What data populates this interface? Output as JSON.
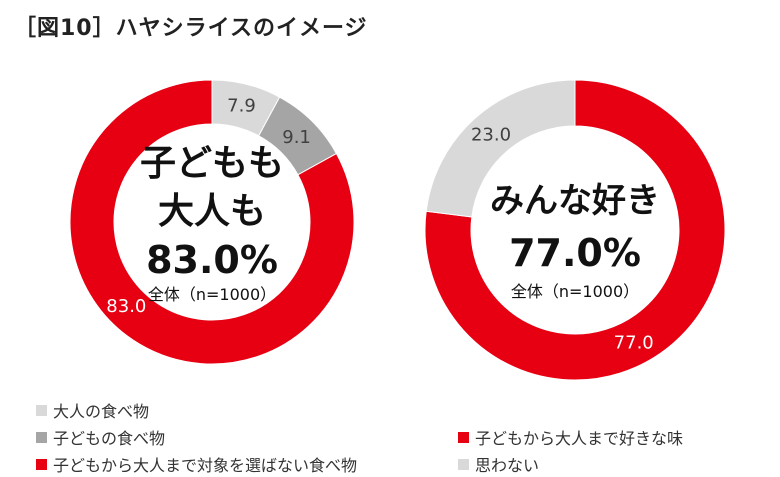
{
  "title": "［図10］ハヤシライスのイメージ",
  "chart_data": [
    {
      "type": "pie",
      "donut": true,
      "categories": [
        "大人の食べ物",
        "子どもの食べ物",
        "子どもから大人まで対象を選ばない食べ物"
      ],
      "values": [
        7.9,
        9.1,
        83.0
      ],
      "colors": [
        "#d9d9d9",
        "#a5a5a5",
        "#e60012"
      ],
      "data_labels": [
        "7.9",
        "9.1",
        "83.0"
      ],
      "center_text": [
        "子どもも",
        "大人も",
        "83.0%"
      ],
      "center_note": "全体（n=1000）",
      "legend_position": "bottom-left"
    },
    {
      "type": "pie",
      "donut": true,
      "categories": [
        "子どもから大人まで好きな味",
        "思わない"
      ],
      "values": [
        77.0,
        23.0
      ],
      "colors": [
        "#e60012",
        "#d9d9d9"
      ],
      "data_labels": [
        "77.0",
        "23.0"
      ],
      "center_text": [
        "みんな好き",
        "77.0%"
      ],
      "center_note": "全体（n=1000）",
      "legend_position": "bottom-right"
    }
  ]
}
